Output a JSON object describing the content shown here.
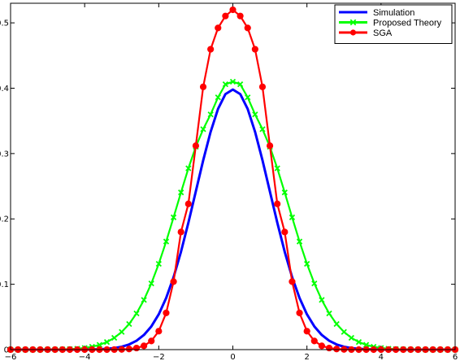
{
  "chart_data": {
    "type": "line",
    "title": "",
    "xlabel": "",
    "ylabel": "",
    "xlim": [
      -6,
      6
    ],
    "ylim": [
      0,
      0.53
    ],
    "xticks": [
      -6,
      -4,
      -2,
      0,
      2,
      4,
      6
    ],
    "yticks": [
      0,
      0.1,
      0.2,
      0.3,
      0.4,
      0.5
    ],
    "xtick_labels": [
      "−6",
      "−4",
      "−2",
      "0",
      "2",
      "4",
      "6"
    ],
    "ytick_labels": [
      "0",
      "0.1",
      "0.2",
      "0.3",
      "0.4",
      "0.5"
    ],
    "grid": false,
    "legend_position": "top-right",
    "series": [
      {
        "name": "Simulation",
        "color": "#0000ff",
        "marker": "none",
        "peak": 0.398,
        "x": [
          -6,
          -5.8,
          -5.6,
          -5.4,
          -5.2,
          -5,
          -4.8,
          -4.6,
          -4.4,
          -4.2,
          -4,
          -3.8,
          -3.6,
          -3.4,
          -3.2,
          -3,
          -2.8,
          -2.6,
          -2.4,
          -2.2,
          -2,
          -1.8,
          -1.6,
          -1.4,
          -1.2,
          -1,
          -0.8,
          -0.6,
          -0.4,
          -0.2,
          0,
          0.2,
          0.4,
          0.6,
          0.8,
          1,
          1.2,
          1.4,
          1.6,
          1.8,
          2,
          2.2,
          2.4,
          2.6,
          2.8,
          3,
          3.2,
          3.4,
          3.6,
          3.8,
          4,
          4.2,
          4.4,
          4.6,
          4.8,
          5,
          5.2,
          5.4,
          5.6,
          5.8,
          6
        ],
        "y": [
          0,
          0,
          0,
          0,
          0,
          0,
          0,
          0,
          0,
          0,
          0.0001,
          0.0003,
          0.0006,
          0.0012,
          0.0024,
          0.0044,
          0.0079,
          0.0136,
          0.0224,
          0.0355,
          0.054,
          0.079,
          0.1109,
          0.1497,
          0.1942,
          0.242,
          0.2897,
          0.3332,
          0.3683,
          0.391,
          0.398,
          0.391,
          0.3683,
          0.3332,
          0.2897,
          0.242,
          0.1942,
          0.1497,
          0.1109,
          0.079,
          0.054,
          0.0355,
          0.0224,
          0.0136,
          0.0079,
          0.0044,
          0.0024,
          0.0012,
          0.0006,
          0.0003,
          0.0001,
          0,
          0,
          0,
          0,
          0,
          0,
          0,
          0,
          0,
          0
        ]
      },
      {
        "name": "Proposed Theory",
        "color": "#00ff00",
        "marker": "x",
        "peak": 0.41,
        "x": [
          -6,
          -5.8,
          -5.6,
          -5.4,
          -5.2,
          -5,
          -4.8,
          -4.6,
          -4.4,
          -4.2,
          -4,
          -3.8,
          -3.6,
          -3.4,
          -3.2,
          -3,
          -2.8,
          -2.6,
          -2.4,
          -2.2,
          -2,
          -1.8,
          -1.6,
          -1.4,
          -1.2,
          -1,
          -0.8,
          -0.6,
          -0.4,
          -0.2,
          0,
          0.2,
          0.4,
          0.6,
          0.8,
          1,
          1.2,
          1.4,
          1.6,
          1.8,
          2,
          2.2,
          2.4,
          2.6,
          2.8,
          3,
          3.2,
          3.4,
          3.6,
          3.8,
          4,
          4.2,
          4.4,
          4.6,
          4.8,
          5,
          5.2,
          5.4,
          5.6,
          5.8,
          6
        ],
        "y": [
          0,
          0,
          0,
          0,
          0,
          0.0001,
          0.0002,
          0.0004,
          0.0008,
          0.0014,
          0.0025,
          0.0044,
          0.0073,
          0.0116,
          0.018,
          0.027,
          0.0392,
          0.0554,
          0.076,
          0.1013,
          0.1313,
          0.1654,
          0.2024,
          0.2405,
          0.2774,
          0.3104,
          0.3373,
          0.3599,
          0.386,
          0.406,
          0.41,
          0.406,
          0.386,
          0.3599,
          0.3373,
          0.3104,
          0.2774,
          0.2405,
          0.2024,
          0.1654,
          0.1313,
          0.1013,
          0.076,
          0.0554,
          0.0392,
          0.027,
          0.018,
          0.0116,
          0.0073,
          0.0044,
          0.0025,
          0.0014,
          0.0008,
          0.0004,
          0.0002,
          0.0001,
          0,
          0,
          0,
          0,
          0
        ]
      },
      {
        "name": "SGA",
        "color": "#ff0000",
        "marker": "o",
        "peak": 0.52,
        "x": [
          -6,
          -5.8,
          -5.6,
          -5.4,
          -5.2,
          -5,
          -4.8,
          -4.6,
          -4.4,
          -4.2,
          -4,
          -3.8,
          -3.6,
          -3.4,
          -3.2,
          -3,
          -2.8,
          -2.6,
          -2.4,
          -2.2,
          -2,
          -1.8,
          -1.6,
          -1.4,
          -1.2,
          -1,
          -0.8,
          -0.6,
          -0.4,
          -0.2,
          0,
          0.2,
          0.4,
          0.6,
          0.8,
          1,
          1.2,
          1.4,
          1.6,
          1.8,
          2,
          2.2,
          2.4,
          2.6,
          2.8,
          3,
          3.2,
          3.4,
          3.6,
          3.8,
          4,
          4.2,
          4.4,
          4.6,
          4.8,
          5,
          5.2,
          5.4,
          5.6,
          5.8,
          6
        ],
        "y": [
          0,
          0,
          0,
          0,
          0,
          0,
          0,
          0,
          0,
          0,
          0,
          0,
          0,
          0,
          0.0001,
          0.0003,
          0.0009,
          0.0024,
          0.0058,
          0.0132,
          0.0282,
          0.0561,
          0.104,
          0.18,
          0.223,
          0.312,
          0.4021,
          0.4596,
          0.4922,
          0.5105,
          0.52,
          0.5105,
          0.4922,
          0.4596,
          0.4021,
          0.312,
          0.223,
          0.18,
          0.104,
          0.0561,
          0.0282,
          0.0132,
          0.0058,
          0.0024,
          0.0009,
          0.0003,
          0.0001,
          0,
          0,
          0,
          0,
          0,
          0,
          0,
          0,
          0,
          0,
          0,
          0,
          0,
          0
        ]
      }
    ]
  }
}
